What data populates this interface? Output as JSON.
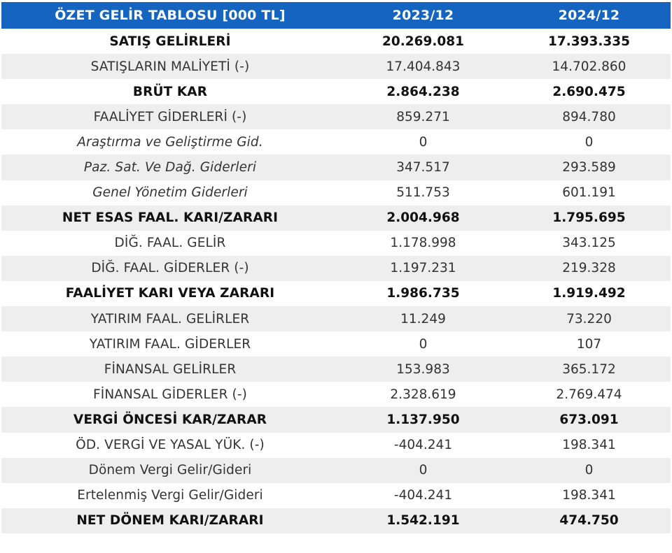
{
  "table": {
    "headers": [
      "ÖZET GELİR TABLOSU [000 TL]",
      "2023/12",
      "2024/12"
    ],
    "rows": [
      {
        "label": "SATIŞ GELİRLERİ",
        "v2023": "20.269.081",
        "v2024": "17.393.335",
        "style": "bold"
      },
      {
        "label": "SATIŞLARIN MALİYETİ (-)",
        "v2023": "17.404.843",
        "v2024": "14.702.860",
        "style": "normal"
      },
      {
        "label": "BRÜT KAR",
        "v2023": "2.864.238",
        "v2024": "2.690.475",
        "style": "bold"
      },
      {
        "label": "FAALİYET GİDERLERİ (-)",
        "v2023": "859.271",
        "v2024": "894.780",
        "style": "normal"
      },
      {
        "label": "Araştırma ve Geliştirme Gid.",
        "v2023": "0",
        "v2024": "0",
        "style": "italic"
      },
      {
        "label": "Paz. Sat. Ve Dağ. Giderleri",
        "v2023": "347.517",
        "v2024": "293.589",
        "style": "italic"
      },
      {
        "label": "Genel Yönetim Giderleri",
        "v2023": "511.753",
        "v2024": "601.191",
        "style": "italic"
      },
      {
        "label": "NET ESAS FAAL. KARI/ZARARI",
        "v2023": "2.004.968",
        "v2024": "1.795.695",
        "style": "bold"
      },
      {
        "label": "DİĞ. FAAL. GELİR",
        "v2023": "1.178.998",
        "v2024": "343.125",
        "style": "normal"
      },
      {
        "label": "DİĞ. FAAL. GİDERLER (-)",
        "v2023": "1.197.231",
        "v2024": "219.328",
        "style": "normal"
      },
      {
        "label": "FAALİYET KARI VEYA ZARARI",
        "v2023": "1.986.735",
        "v2024": "1.919.492",
        "style": "bold"
      },
      {
        "label": "YATIRIM FAAL. GELİRLER",
        "v2023": "11.249",
        "v2024": "73.220",
        "style": "normal"
      },
      {
        "label": "YATIRIM FAAL. GİDERLER",
        "v2023": "0",
        "v2024": "107",
        "style": "normal"
      },
      {
        "label": "FİNANSAL GELİRLER",
        "v2023": "153.983",
        "v2024": "365.172",
        "style": "normal"
      },
      {
        "label": "FİNANSAL GİDERLER (-)",
        "v2023": "2.328.619",
        "v2024": "2.769.474",
        "style": "normal"
      },
      {
        "label": "VERGİ ÖNCESİ KAR/ZARAR",
        "v2023": "1.137.950",
        "v2024": "673.091",
        "style": "bold"
      },
      {
        "label": "ÖD. VERGİ VE YASAL YÜK. (-)",
        "v2023": "-404.241",
        "v2024": "198.341",
        "style": "normal"
      },
      {
        "label": "Dönem Vergi Gelir/Gideri",
        "v2023": "0",
        "v2024": "0",
        "style": "normal"
      },
      {
        "label": "Ertelenmiş Vergi Gelir/Gideri",
        "v2023": "-404.241",
        "v2024": "198.341",
        "style": "normal"
      },
      {
        "label": "NET DÖNEM KARI/ZARARI",
        "v2023": "1.542.191",
        "v2024": "474.750",
        "style": "bold"
      }
    ]
  }
}
